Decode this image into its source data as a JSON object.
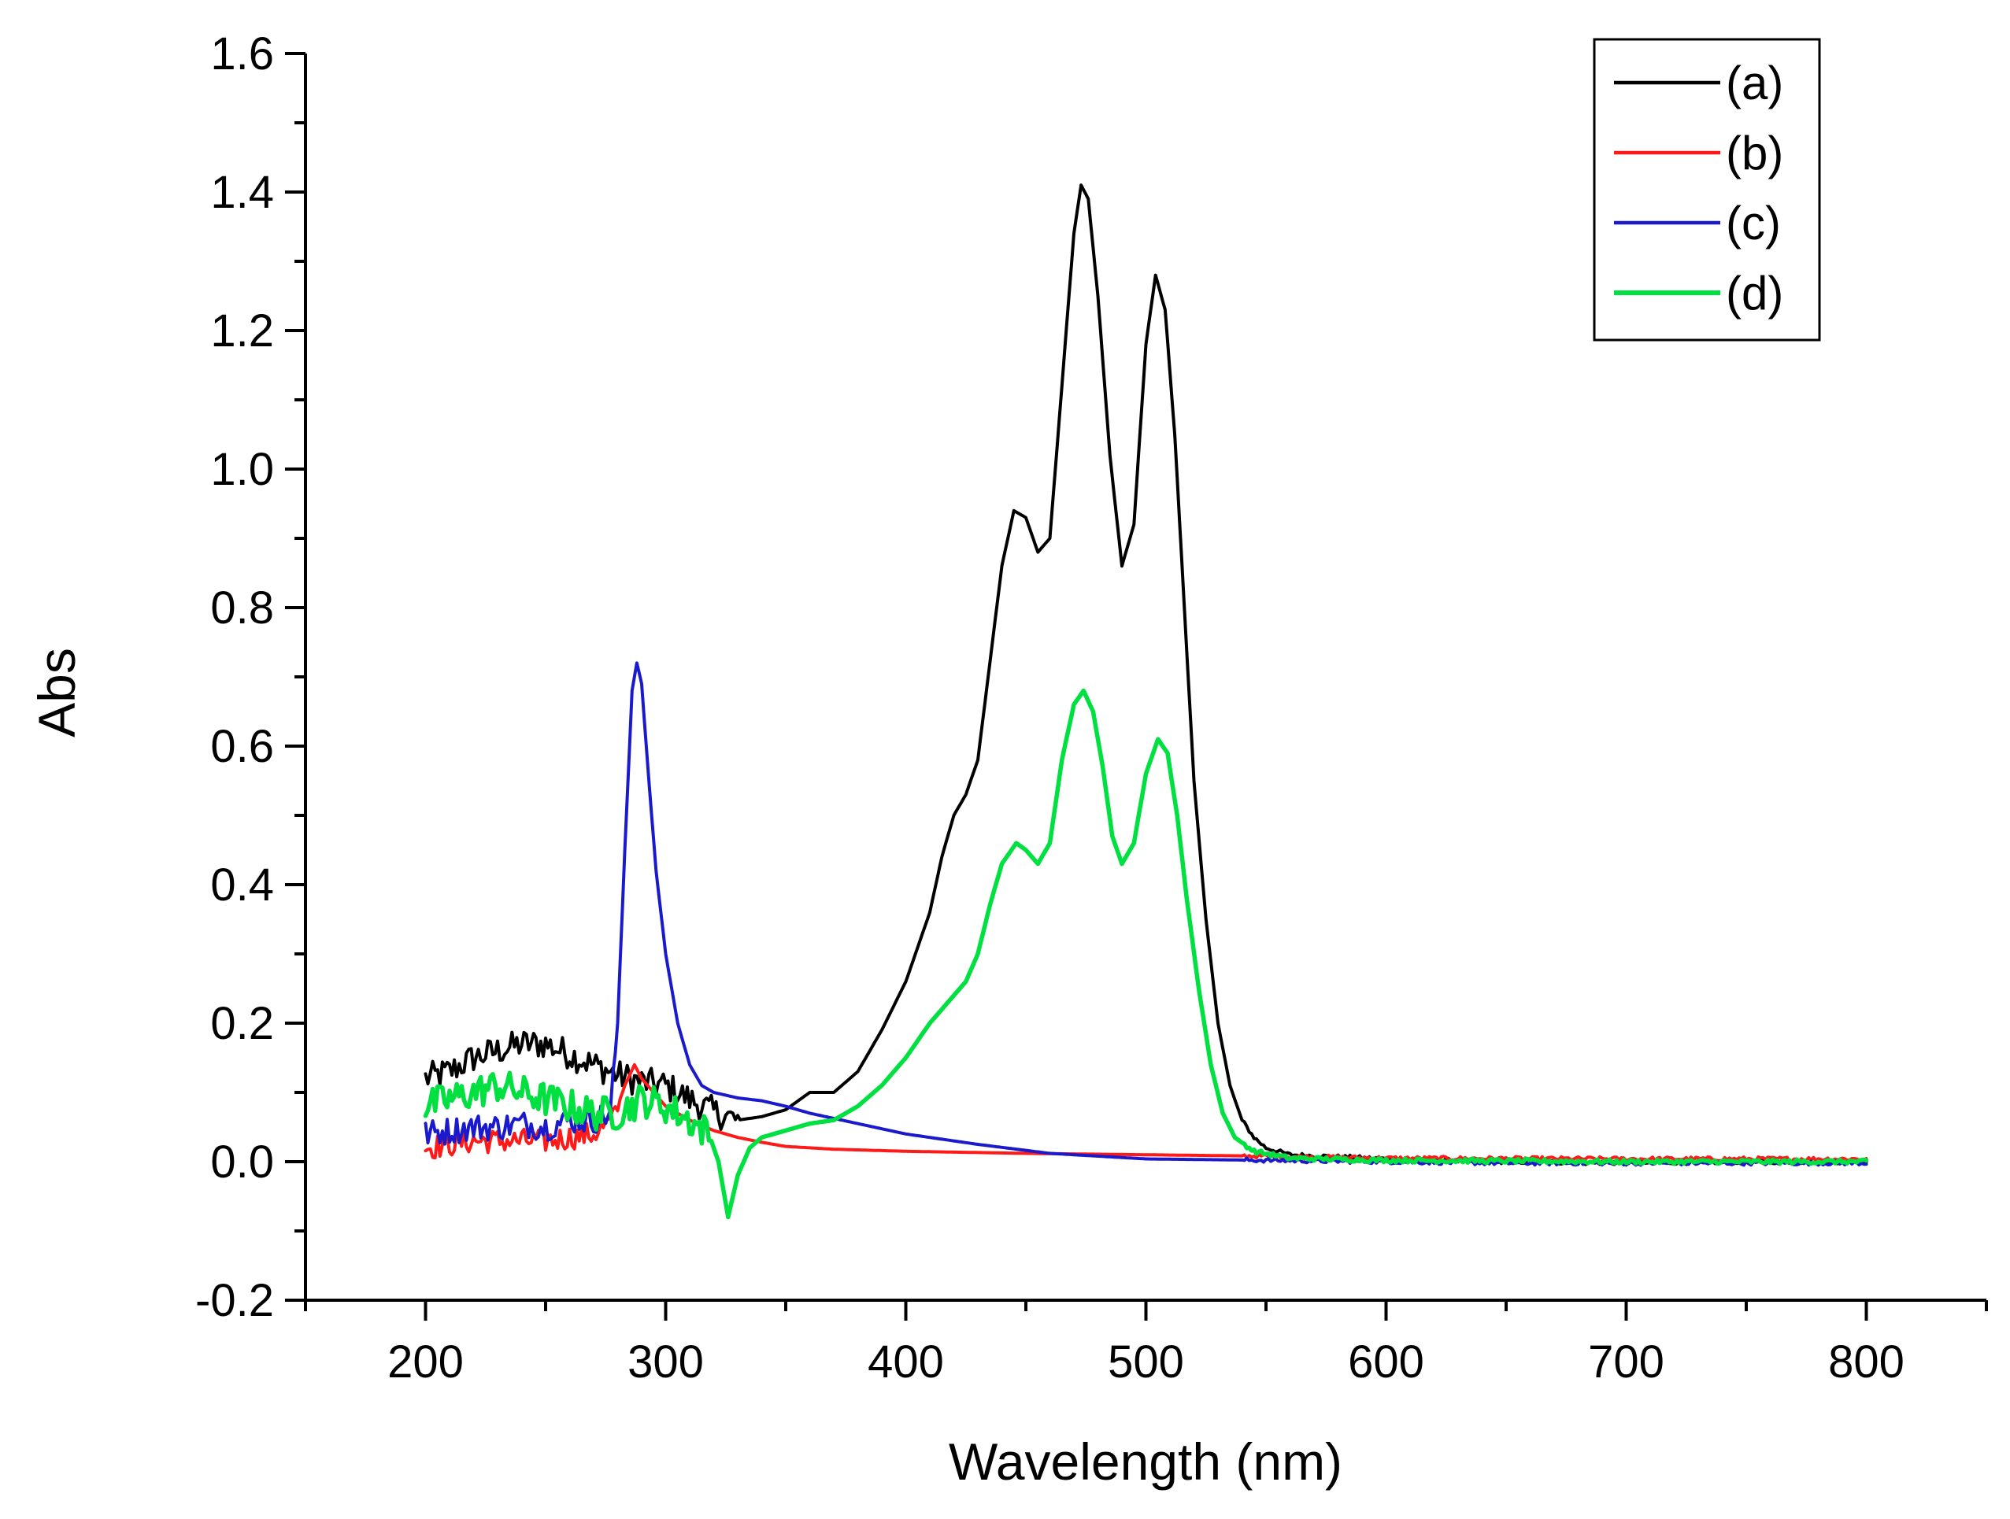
{
  "chart_data": {
    "type": "line",
    "title": "",
    "xlabel": "Wavelength (nm)",
    "ylabel": "Abs",
    "xlim": [
      150,
      850
    ],
    "ylim": [
      -0.2,
      1.6
    ],
    "xticks": [
      200,
      300,
      400,
      500,
      600,
      700,
      800
    ],
    "xtick_labels": [
      "200",
      "300",
      "400",
      "500",
      "600",
      "700",
      "800"
    ],
    "yticks": [
      -0.2,
      0.0,
      0.2,
      0.4,
      0.6,
      0.8,
      1.0,
      1.2,
      1.4,
      1.6
    ],
    "ytick_labels": [
      "-0.2",
      "0.0",
      "0.2",
      "0.4",
      "0.6",
      "0.8",
      "1.0",
      "1.2",
      "1.4",
      "1.6"
    ],
    "grid": false,
    "legend_position": "top-right",
    "series": [
      {
        "name": "(a)",
        "color": "#000000",
        "noise": 0.022,
        "noise_until": 330,
        "points": [
          [
            200,
            0.12
          ],
          [
            210,
            0.13
          ],
          [
            220,
            0.15
          ],
          [
            230,
            0.16
          ],
          [
            240,
            0.17
          ],
          [
            250,
            0.17
          ],
          [
            260,
            0.155
          ],
          [
            270,
            0.14
          ],
          [
            280,
            0.125
          ],
          [
            290,
            0.115
          ],
          [
            300,
            0.11
          ],
          [
            310,
            0.09
          ],
          [
            320,
            0.072
          ],
          [
            330,
            0.06
          ],
          [
            340,
            0.065
          ],
          [
            350,
            0.075
          ],
          [
            360,
            0.1
          ],
          [
            370,
            0.1
          ],
          [
            380,
            0.13
          ],
          [
            390,
            0.19
          ],
          [
            400,
            0.26
          ],
          [
            410,
            0.36
          ],
          [
            415,
            0.44
          ],
          [
            420,
            0.5
          ],
          [
            425,
            0.53
          ],
          [
            430,
            0.58
          ],
          [
            435,
            0.72
          ],
          [
            440,
            0.86
          ],
          [
            445,
            0.94
          ],
          [
            450,
            0.93
          ],
          [
            455,
            0.88
          ],
          [
            460,
            0.9
          ],
          [
            465,
            1.12
          ],
          [
            470,
            1.34
          ],
          [
            473,
            1.41
          ],
          [
            476,
            1.39
          ],
          [
            480,
            1.25
          ],
          [
            485,
            1.02
          ],
          [
            490,
            0.86
          ],
          [
            495,
            0.92
          ],
          [
            500,
            1.18
          ],
          [
            504,
            1.28
          ],
          [
            508,
            1.23
          ],
          [
            512,
            1.05
          ],
          [
            516,
            0.8
          ],
          [
            520,
            0.55
          ],
          [
            525,
            0.35
          ],
          [
            530,
            0.2
          ],
          [
            535,
            0.11
          ],
          [
            540,
            0.06
          ],
          [
            545,
            0.035
          ],
          [
            550,
            0.02
          ],
          [
            560,
            0.01
          ],
          [
            600,
            0.004
          ],
          [
            650,
            0.0
          ],
          [
            700,
            -0.002
          ],
          [
            750,
            0.0
          ],
          [
            800,
            0.0
          ]
        ]
      },
      {
        "name": "(b)",
        "color": "#ff1a1a",
        "noise": 0.018,
        "noise_until": 280,
        "points": [
          [
            200,
            0.02
          ],
          [
            210,
            0.025
          ],
          [
            220,
            0.03
          ],
          [
            230,
            0.03
          ],
          [
            240,
            0.03
          ],
          [
            250,
            0.03
          ],
          [
            260,
            0.035
          ],
          [
            270,
            0.04
          ],
          [
            278,
            0.06
          ],
          [
            283,
            0.11
          ],
          [
            287,
            0.14
          ],
          [
            290,
            0.12
          ],
          [
            295,
            0.1
          ],
          [
            300,
            0.08
          ],
          [
            310,
            0.06
          ],
          [
            320,
            0.045
          ],
          [
            330,
            0.035
          ],
          [
            340,
            0.028
          ],
          [
            350,
            0.022
          ],
          [
            370,
            0.018
          ],
          [
            400,
            0.015
          ],
          [
            450,
            0.012
          ],
          [
            500,
            0.01
          ],
          [
            550,
            0.008
          ],
          [
            600,
            0.005
          ],
          [
            700,
            0.004
          ],
          [
            800,
            0.004
          ]
        ]
      },
      {
        "name": "(c)",
        "color": "#1a1acc",
        "noise": 0.02,
        "noise_until": 278,
        "points": [
          [
            200,
            0.04
          ],
          [
            210,
            0.045
          ],
          [
            220,
            0.05
          ],
          [
            230,
            0.05
          ],
          [
            240,
            0.055
          ],
          [
            250,
            0.05
          ],
          [
            260,
            0.06
          ],
          [
            270,
            0.06
          ],
          [
            277,
            0.07
          ],
          [
            280,
            0.2
          ],
          [
            283,
            0.45
          ],
          [
            286,
            0.68
          ],
          [
            288,
            0.72
          ],
          [
            290,
            0.69
          ],
          [
            293,
            0.55
          ],
          [
            296,
            0.42
          ],
          [
            300,
            0.3
          ],
          [
            305,
            0.2
          ],
          [
            310,
            0.14
          ],
          [
            315,
            0.11
          ],
          [
            320,
            0.1
          ],
          [
            330,
            0.092
          ],
          [
            340,
            0.088
          ],
          [
            350,
            0.08
          ],
          [
            360,
            0.07
          ],
          [
            380,
            0.055
          ],
          [
            400,
            0.04
          ],
          [
            430,
            0.025
          ],
          [
            460,
            0.012
          ],
          [
            500,
            0.004
          ],
          [
            550,
            0.002
          ],
          [
            600,
            0.0
          ],
          [
            650,
            -0.002
          ],
          [
            700,
            -0.002
          ],
          [
            800,
            -0.002
          ]
        ]
      },
      {
        "name": "(d)",
        "color": "#00e040",
        "noise": 0.025,
        "noise_until": 318,
        "points": [
          [
            200,
            0.08
          ],
          [
            210,
            0.09
          ],
          [
            220,
            0.1
          ],
          [
            230,
            0.11
          ],
          [
            240,
            0.1
          ],
          [
            250,
            0.09
          ],
          [
            260,
            0.08
          ],
          [
            270,
            0.07
          ],
          [
            280,
            0.07
          ],
          [
            290,
            0.09
          ],
          [
            300,
            0.08
          ],
          [
            310,
            0.06
          ],
          [
            318,
            0.04
          ],
          [
            322,
            0.0
          ],
          [
            326,
            -0.08
          ],
          [
            330,
            -0.02
          ],
          [
            335,
            0.02
          ],
          [
            340,
            0.035
          ],
          [
            350,
            0.045
          ],
          [
            360,
            0.055
          ],
          [
            370,
            0.06
          ],
          [
            380,
            0.08
          ],
          [
            390,
            0.11
          ],
          [
            400,
            0.15
          ],
          [
            410,
            0.2
          ],
          [
            420,
            0.24
          ],
          [
            425,
            0.26
          ],
          [
            430,
            0.3
          ],
          [
            435,
            0.37
          ],
          [
            440,
            0.43
          ],
          [
            446,
            0.46
          ],
          [
            450,
            0.45
          ],
          [
            455,
            0.43
          ],
          [
            460,
            0.46
          ],
          [
            465,
            0.58
          ],
          [
            470,
            0.66
          ],
          [
            474,
            0.68
          ],
          [
            478,
            0.65
          ],
          [
            482,
            0.57
          ],
          [
            486,
            0.47
          ],
          [
            490,
            0.43
          ],
          [
            495,
            0.46
          ],
          [
            500,
            0.56
          ],
          [
            505,
            0.61
          ],
          [
            509,
            0.59
          ],
          [
            513,
            0.5
          ],
          [
            517,
            0.38
          ],
          [
            522,
            0.25
          ],
          [
            527,
            0.14
          ],
          [
            532,
            0.07
          ],
          [
            537,
            0.035
          ],
          [
            545,
            0.015
          ],
          [
            560,
            0.005
          ],
          [
            600,
            0.002
          ],
          [
            700,
            0.0
          ],
          [
            800,
            0.0
          ]
        ]
      }
    ]
  }
}
